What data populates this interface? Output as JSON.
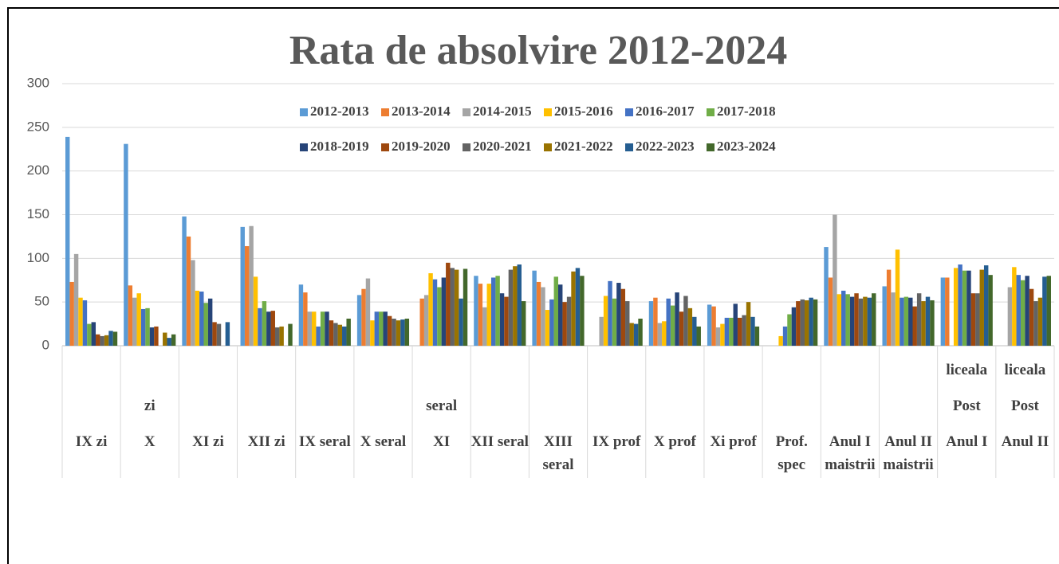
{
  "chart_data": {
    "type": "bar",
    "title": "Rata de absolvire 2012-2024",
    "categories": [
      "IX zi",
      "zi\nX",
      "XI zi",
      "XII zi",
      "IX seral",
      "X seral",
      "seral\nXI",
      "XII seral",
      "XIII\nseral",
      "IX prof",
      "X prof",
      "Xi prof",
      "Prof.\nspec",
      "Anul I\nmaistrii",
      "Anul II\nmaistrii",
      "liceala\nPost\nAnul I",
      "liceala\nPost\nAnul II"
    ],
    "series": [
      {
        "name": "2012-2013",
        "color": "#5b9bd5",
        "values": [
          239,
          231,
          148,
          136,
          70,
          58,
          0,
          80,
          86,
          0,
          51,
          47,
          0,
          113,
          68,
          78,
          0
        ]
      },
      {
        "name": "2013-2014",
        "color": "#ed7d31",
        "values": [
          73,
          69,
          125,
          114,
          61,
          65,
          54,
          71,
          73,
          0,
          55,
          45,
          0,
          78,
          87,
          78,
          0
        ]
      },
      {
        "name": "2014-2015",
        "color": "#a5a5a5",
        "values": [
          105,
          55,
          98,
          137,
          39,
          77,
          58,
          44,
          67,
          33,
          26,
          21,
          0,
          150,
          61,
          0,
          67
        ]
      },
      {
        "name": "2015-2016",
        "color": "#ffc000",
        "values": [
          55,
          60,
          63,
          79,
          39,
          29,
          83,
          71,
          41,
          57,
          28,
          25,
          11,
          59,
          110,
          89,
          90
        ]
      },
      {
        "name": "2016-2017",
        "color": "#4472c4",
        "values": [
          52,
          42,
          62,
          43,
          22,
          39,
          76,
          78,
          53,
          74,
          54,
          32,
          22,
          63,
          55,
          93,
          81
        ]
      },
      {
        "name": "2017-2018",
        "color": "#70ad47",
        "values": [
          25,
          43,
          49,
          51,
          39,
          39,
          67,
          80,
          79,
          54,
          46,
          32,
          36,
          59,
          56,
          86,
          75
        ]
      },
      {
        "name": "2018-2019",
        "color": "#264478",
        "values": [
          27,
          21,
          54,
          39,
          39,
          39,
          78,
          60,
          70,
          72,
          61,
          48,
          44,
          56,
          55,
          86,
          80
        ]
      },
      {
        "name": "2019-2020",
        "color": "#9e480e",
        "values": [
          13,
          22,
          27,
          40,
          29,
          34,
          95,
          56,
          50,
          65,
          39,
          32,
          51,
          60,
          45,
          60,
          65
        ]
      },
      {
        "name": "2020-2021",
        "color": "#636363",
        "values": [
          11,
          0,
          25,
          21,
          26,
          31,
          89,
          87,
          56,
          51,
          57,
          35,
          53,
          54,
          60,
          60,
          51
        ]
      },
      {
        "name": "2021-2022",
        "color": "#997300",
        "values": [
          12,
          15,
          0,
          22,
          24,
          29,
          87,
          91,
          85,
          26,
          43,
          50,
          52,
          56,
          51,
          87,
          55
        ]
      },
      {
        "name": "2022-2023",
        "color": "#255e91",
        "values": [
          17,
          9,
          27,
          0,
          22,
          30,
          54,
          93,
          89,
          25,
          33,
          33,
          55,
          55,
          56,
          92,
          79
        ]
      },
      {
        "name": "2023-2024",
        "color": "#43682b",
        "values": [
          16,
          13,
          0,
          25,
          31,
          31,
          88,
          51,
          80,
          31,
          22,
          22,
          53,
          60,
          52,
          81,
          80
        ]
      }
    ],
    "ylim": [
      0,
      300
    ],
    "yticks": [
      0,
      50,
      100,
      150,
      200,
      250,
      300
    ],
    "grid": true
  }
}
